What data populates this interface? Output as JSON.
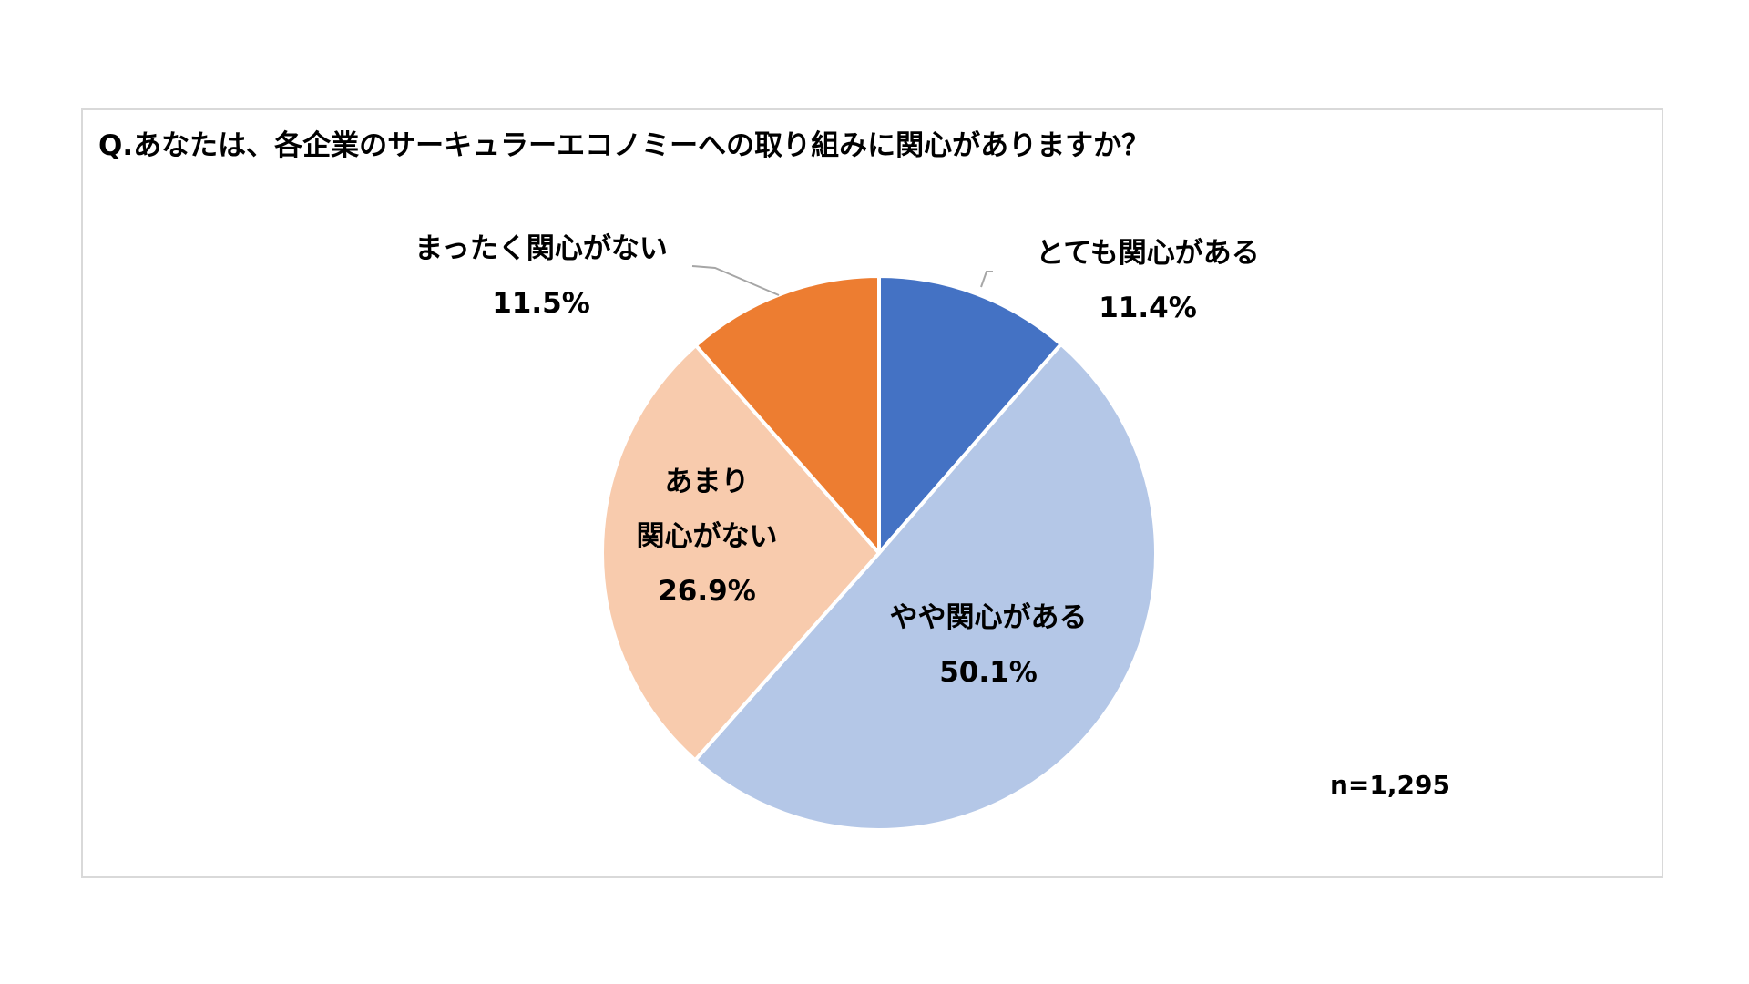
{
  "title": "Q.あなたは、各企業のサーキュラーエコノミーへの取り組みに関心がありますか？",
  "sample_size": "n=1,295",
  "chart_data": {
    "type": "pie",
    "title": "Q.あなたは、各企業のサーキュラーエコノミーへの取り組みに関心がありますか？",
    "start": "12 o'clock",
    "direction": "clockwise",
    "slices": [
      {
        "label_lines": [
          "とても関心がある"
        ],
        "value": 11.4,
        "value_label": "11.4%",
        "color": "#4472c4",
        "label_placement": "outside"
      },
      {
        "label_lines": [
          "やや関心がある"
        ],
        "value": 50.1,
        "value_label": "50.1%",
        "color": "#b4c7e7",
        "label_placement": "inside"
      },
      {
        "label_lines": [
          "あまり",
          "関心がない"
        ],
        "value": 26.9,
        "value_label": "26.9%",
        "color": "#f8cbad",
        "label_placement": "inside"
      },
      {
        "label_lines": [
          "まったく関心がない"
        ],
        "value": 11.5,
        "value_label": "11.5%",
        "color": "#ed7d31",
        "label_placement": "outside"
      }
    ],
    "leader_line_color": "#a6a6a6",
    "slice_border_color": "#ffffff"
  }
}
